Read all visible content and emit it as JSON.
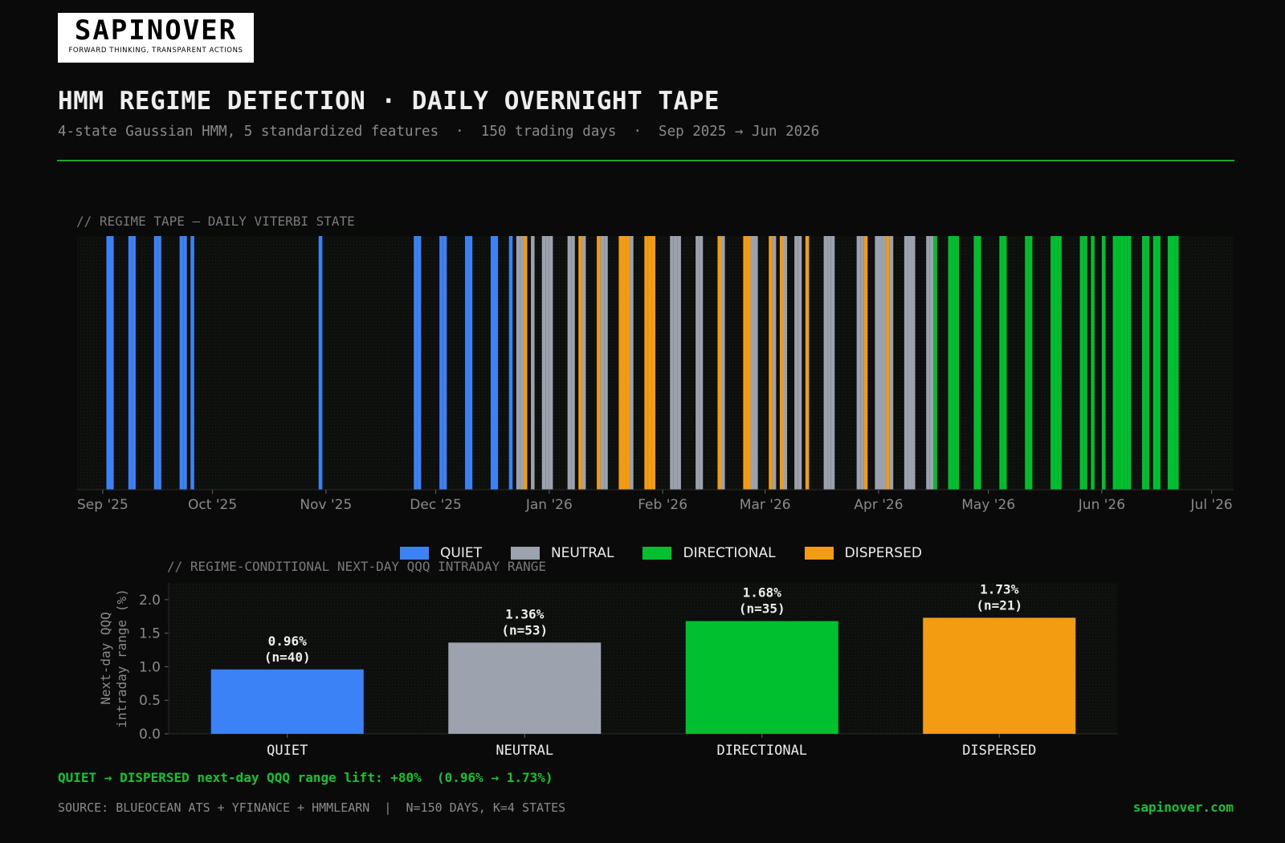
{
  "logo": {
    "wordmark": "SAPINOVER",
    "tagline": "FORWARD THINKING, TRANSPARENT ACTIONS"
  },
  "header": {
    "title": "HMM REGIME DETECTION · DAILY OVERNIGHT TAPE",
    "subtitle": "4-state Gaussian HMM, 5 standardized features  ·  150 trading days  ·  Sep 2025 → Jun 2026"
  },
  "colors": {
    "QUIET": "#3b82f6",
    "NEUTRAL": "#9ca3af",
    "DIRECTIONAL": "#00c030",
    "DISPERSED": "#f39c12",
    "accent": "#17c232"
  },
  "chart_data": [
    {
      "type": "bar",
      "label": "// REGIME TAPE — DAILY VITERBI STATE",
      "x_ticks": [
        "Sep '25",
        "Oct '25",
        "Nov '25",
        "Dec '25",
        "Jan '26",
        "Feb '26",
        "Mar '26",
        "Apr '26",
        "May '26",
        "Jun '26",
        "Jul '26"
      ],
      "legend": [
        "QUIET",
        "NEUTRAL",
        "DIRECTIONAL",
        "DISPERSED"
      ],
      "legend_position": "bottom-center",
      "days": [
        {
          "date": "2025-09-02",
          "state": "QUIET"
        },
        {
          "date": "2025-09-03",
          "state": "QUIET"
        },
        {
          "date": "2025-09-08",
          "state": "QUIET"
        },
        {
          "date": "2025-09-09",
          "state": "QUIET"
        },
        {
          "date": "2025-09-15",
          "state": "QUIET"
        },
        {
          "date": "2025-09-16",
          "state": "QUIET"
        },
        {
          "date": "2025-09-22",
          "state": "QUIET"
        },
        {
          "date": "2025-09-23",
          "state": "QUIET"
        },
        {
          "date": "2025-09-25",
          "state": "QUIET"
        },
        {
          "date": "2025-10-30",
          "state": "QUIET"
        },
        {
          "date": "2025-11-25",
          "state": "QUIET"
        },
        {
          "date": "2025-11-26",
          "state": "QUIET"
        },
        {
          "date": "2025-12-02",
          "state": "QUIET"
        },
        {
          "date": "2025-12-03",
          "state": "QUIET"
        },
        {
          "date": "2025-12-09",
          "state": "QUIET"
        },
        {
          "date": "2025-12-10",
          "state": "QUIET"
        },
        {
          "date": "2025-12-16",
          "state": "QUIET"
        },
        {
          "date": "2025-12-17",
          "state": "QUIET"
        },
        {
          "date": "2025-12-21",
          "state": "QUIET"
        },
        {
          "date": "2025-12-23",
          "state": "NEUTRAL"
        },
        {
          "date": "2025-12-24",
          "state": "NEUTRAL"
        },
        {
          "date": "2025-12-25",
          "state": "DISPERSED"
        },
        {
          "date": "2025-12-27",
          "state": "NEUTRAL"
        },
        {
          "date": "2025-12-30",
          "state": "NEUTRAL"
        },
        {
          "date": "2025-12-31",
          "state": "NEUTRAL"
        },
        {
          "date": "2026-01-01",
          "state": "NEUTRAL"
        },
        {
          "date": "2026-01-06",
          "state": "NEUTRAL"
        },
        {
          "date": "2026-01-07",
          "state": "NEUTRAL"
        },
        {
          "date": "2026-01-09",
          "state": "DISPERSED"
        },
        {
          "date": "2026-01-10",
          "state": "NEUTRAL"
        },
        {
          "date": "2026-01-14",
          "state": "DISPERSED"
        },
        {
          "date": "2026-01-15",
          "state": "NEUTRAL"
        },
        {
          "date": "2026-01-16",
          "state": "NEUTRAL"
        },
        {
          "date": "2026-01-20",
          "state": "DISPERSED"
        },
        {
          "date": "2026-01-21",
          "state": "DISPERSED"
        },
        {
          "date": "2026-01-22",
          "state": "DISPERSED"
        },
        {
          "date": "2026-01-23",
          "state": "NEUTRAL"
        },
        {
          "date": "2026-01-27",
          "state": "DISPERSED"
        },
        {
          "date": "2026-01-28",
          "state": "DISPERSED"
        },
        {
          "date": "2026-01-29",
          "state": "DISPERSED"
        },
        {
          "date": "2026-02-03",
          "state": "NEUTRAL"
        },
        {
          "date": "2026-02-04",
          "state": "NEUTRAL"
        },
        {
          "date": "2026-02-05",
          "state": "NEUTRAL"
        },
        {
          "date": "2026-02-10",
          "state": "NEUTRAL"
        },
        {
          "date": "2026-02-11",
          "state": "NEUTRAL"
        },
        {
          "date": "2026-02-16",
          "state": "DISPERSED"
        },
        {
          "date": "2026-02-17",
          "state": "NEUTRAL"
        },
        {
          "date": "2026-02-23",
          "state": "DISPERSED"
        },
        {
          "date": "2026-02-24",
          "state": "DISPERSED"
        },
        {
          "date": "2026-02-25",
          "state": "NEUTRAL"
        },
        {
          "date": "2026-02-26",
          "state": "NEUTRAL"
        },
        {
          "date": "2026-03-02",
          "state": "DISPERSED"
        },
        {
          "date": "2026-03-03",
          "state": "NEUTRAL"
        },
        {
          "date": "2026-03-05",
          "state": "DISPERSED"
        },
        {
          "date": "2026-03-06",
          "state": "NEUTRAL"
        },
        {
          "date": "2026-03-09",
          "state": "NEUTRAL"
        },
        {
          "date": "2026-03-10",
          "state": "NEUTRAL"
        },
        {
          "date": "2026-03-12",
          "state": "DISPERSED"
        },
        {
          "date": "2026-03-17",
          "state": "NEUTRAL"
        },
        {
          "date": "2026-03-18",
          "state": "NEUTRAL"
        },
        {
          "date": "2026-03-19",
          "state": "NEUTRAL"
        },
        {
          "date": "2026-03-26",
          "state": "NEUTRAL"
        },
        {
          "date": "2026-03-27",
          "state": "NEUTRAL"
        },
        {
          "date": "2026-03-28",
          "state": "DISPERSED"
        },
        {
          "date": "2026-03-31",
          "state": "NEUTRAL"
        },
        {
          "date": "2026-04-01",
          "state": "NEUTRAL"
        },
        {
          "date": "2026-04-02",
          "state": "NEUTRAL"
        },
        {
          "date": "2026-04-03",
          "state": "DISPERSED"
        },
        {
          "date": "2026-04-04",
          "state": "NEUTRAL"
        },
        {
          "date": "2026-04-08",
          "state": "NEUTRAL"
        },
        {
          "date": "2026-04-09",
          "state": "NEUTRAL"
        },
        {
          "date": "2026-04-10",
          "state": "NEUTRAL"
        },
        {
          "date": "2026-04-14",
          "state": "NEUTRAL"
        },
        {
          "date": "2026-04-15",
          "state": "NEUTRAL"
        },
        {
          "date": "2026-04-16",
          "state": "DIRECTIONAL"
        },
        {
          "date": "2026-04-20",
          "state": "DIRECTIONAL"
        },
        {
          "date": "2026-04-21",
          "state": "DIRECTIONAL"
        },
        {
          "date": "2026-04-22",
          "state": "DIRECTIONAL"
        },
        {
          "date": "2026-04-27",
          "state": "DIRECTIONAL"
        },
        {
          "date": "2026-04-28",
          "state": "DIRECTIONAL"
        },
        {
          "date": "2026-05-04",
          "state": "DIRECTIONAL"
        },
        {
          "date": "2026-05-05",
          "state": "DIRECTIONAL"
        },
        {
          "date": "2026-05-11",
          "state": "DIRECTIONAL"
        },
        {
          "date": "2026-05-12",
          "state": "DIRECTIONAL"
        },
        {
          "date": "2026-05-18",
          "state": "DIRECTIONAL"
        },
        {
          "date": "2026-05-19",
          "state": "DIRECTIONAL"
        },
        {
          "date": "2026-05-20",
          "state": "DIRECTIONAL"
        },
        {
          "date": "2026-05-26",
          "state": "DIRECTIONAL"
        },
        {
          "date": "2026-05-27",
          "state": "DIRECTIONAL"
        },
        {
          "date": "2026-05-29",
          "state": "DIRECTIONAL"
        },
        {
          "date": "2026-06-01",
          "state": "DIRECTIONAL"
        },
        {
          "date": "2026-06-04",
          "state": "DIRECTIONAL"
        },
        {
          "date": "2026-06-05",
          "state": "DIRECTIONAL"
        },
        {
          "date": "2026-06-06",
          "state": "DIRECTIONAL"
        },
        {
          "date": "2026-06-07",
          "state": "DIRECTIONAL"
        },
        {
          "date": "2026-06-08",
          "state": "DIRECTIONAL"
        },
        {
          "date": "2026-06-12",
          "state": "DIRECTIONAL"
        },
        {
          "date": "2026-06-13",
          "state": "DIRECTIONAL"
        },
        {
          "date": "2026-06-15",
          "state": "DIRECTIONAL"
        },
        {
          "date": "2026-06-16",
          "state": "DIRECTIONAL"
        },
        {
          "date": "2026-06-19",
          "state": "DIRECTIONAL"
        },
        {
          "date": "2026-06-20",
          "state": "DIRECTIONAL"
        },
        {
          "date": "2026-06-21",
          "state": "DIRECTIONAL"
        }
      ]
    },
    {
      "type": "bar",
      "label": "// REGIME-CONDITIONAL NEXT-DAY QQQ INTRADAY RANGE",
      "categories": [
        "QUIET",
        "NEUTRAL",
        "DIRECTIONAL",
        "DISPERSED"
      ],
      "values": [
        0.96,
        1.36,
        1.68,
        1.73
      ],
      "value_labels": [
        "0.96%",
        "1.36%",
        "1.68%",
        "1.73%"
      ],
      "n_labels": [
        "(n=40)",
        "(n=53)",
        "(n=35)",
        "(n=21)"
      ],
      "ylabel": "Next-day QQQ\nintraday range (%)",
      "ylabel_line1": "Next-day QQQ",
      "ylabel_line2": "intraday range (%)",
      "ylim": [
        0,
        2.25
      ],
      "y_ticks": [
        0.0,
        0.5,
        1.0,
        1.5,
        2.0
      ],
      "y_tick_labels": [
        "0.0",
        "0.5",
        "1.0",
        "1.5",
        "2.0"
      ]
    }
  ],
  "footer": {
    "stat": "QUIET → DISPERSED next-day QQQ range lift: +80%  (0.96% → 1.73%)",
    "source": "SOURCE: BLUEOCEAN ATS + YFINANCE + HMMLEARN  |  N=150 DAYS, K=4 STATES",
    "site": "sapinover.com"
  }
}
